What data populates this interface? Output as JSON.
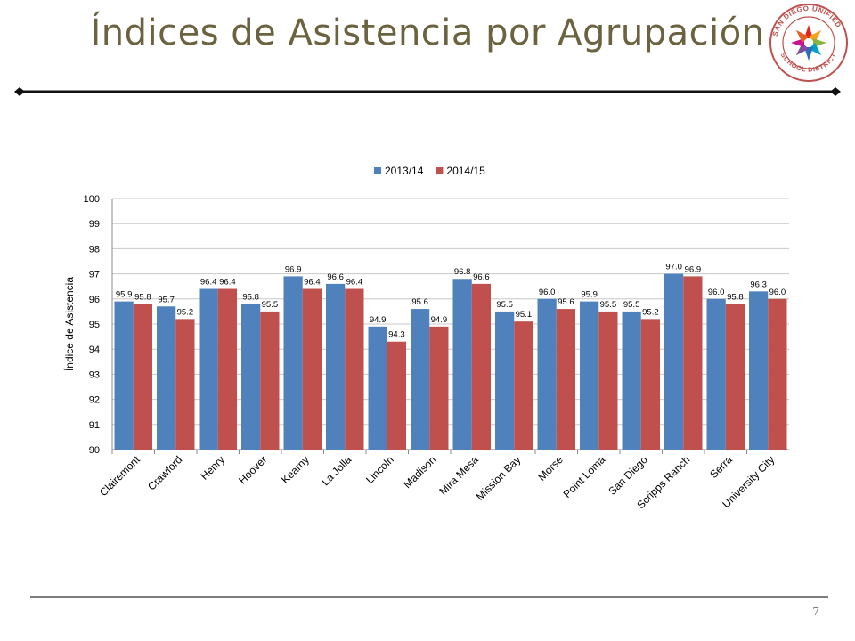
{
  "slide": {
    "title": "Índices de Asistencia por Agrupación",
    "page_number": "7",
    "logo": {
      "icon": "sdusd-star-seal-icon",
      "text": "SAN DIEGO UNIFIED · SCHOOL DISTRICT"
    },
    "colors": {
      "title": "#6b6240",
      "rule": "#111111",
      "logo_ring": "#c0504d"
    }
  },
  "chart_data": {
    "type": "bar",
    "title": "",
    "xlabel": "",
    "ylabel": "Índice de Asistencia",
    "ylim": [
      90,
      100
    ],
    "yticks": [
      90,
      91,
      92,
      93,
      94,
      95,
      96,
      97,
      98,
      99,
      100
    ],
    "grid": true,
    "legend_position": "top",
    "categories": [
      "Clairemont",
      "Crawford",
      "Henry",
      "Hoover",
      "Kearny",
      "La Jolla",
      "Lincoln",
      "Madison",
      "Mira Mesa",
      "Mission Bay",
      "Morse",
      "Point Loma",
      "San Diego",
      "Scripps Ranch",
      "Serra",
      "University City"
    ],
    "series": [
      {
        "name": "2013/14",
        "color": "#4f81bd",
        "values": [
          95.9,
          95.7,
          96.4,
          95.8,
          96.9,
          96.6,
          94.9,
          95.6,
          96.8,
          95.5,
          96.0,
          95.9,
          95.5,
          97.0,
          96.0,
          96.3
        ]
      },
      {
        "name": "2014/15",
        "color": "#c0504d",
        "values": [
          95.8,
          95.2,
          96.4,
          95.5,
          96.4,
          96.4,
          94.3,
          94.9,
          96.6,
          95.1,
          95.6,
          95.5,
          95.2,
          96.9,
          95.8,
          96.0
        ]
      }
    ]
  }
}
